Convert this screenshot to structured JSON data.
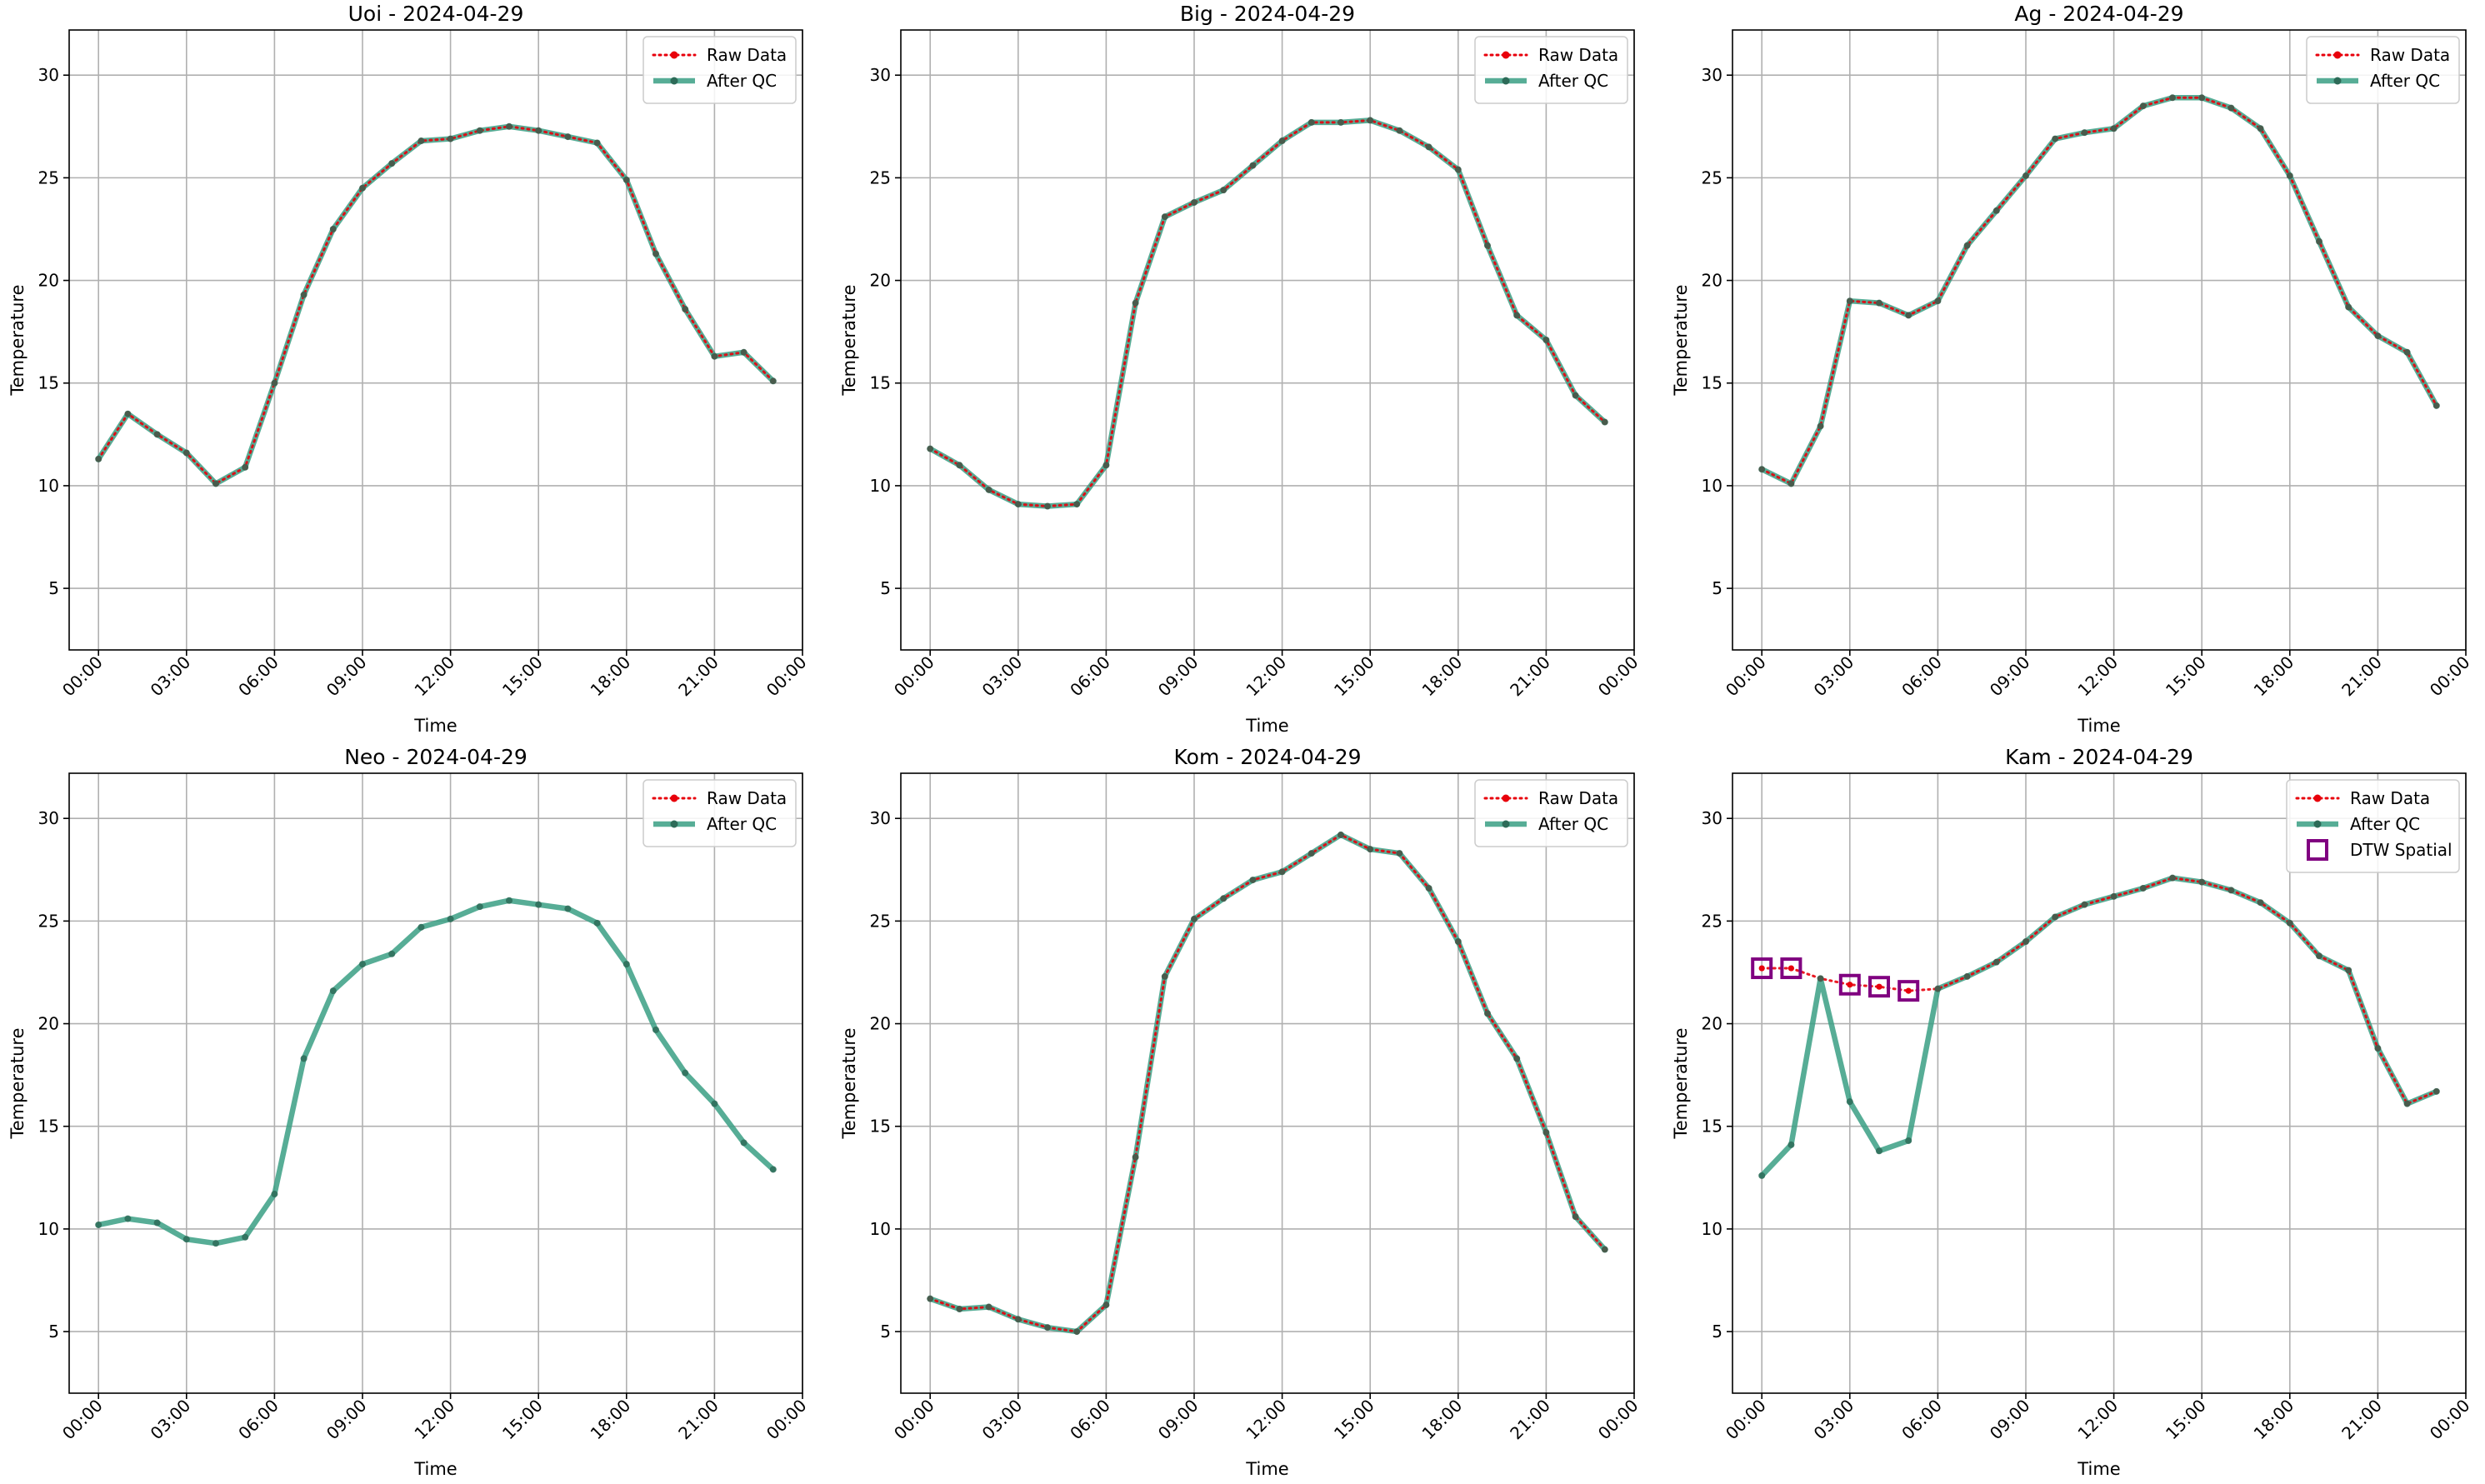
{
  "chart_data": [
    {
      "type": "line",
      "title": "Uoi - 2024-04-29",
      "xlabel": "Time",
      "ylabel": "Temperature",
      "ylim": [
        2,
        32.2
      ],
      "xlim": [
        -1,
        24
      ],
      "x_tick_hours": [
        0,
        3,
        6,
        9,
        12,
        15,
        18,
        21,
        24
      ],
      "x_tick_labels": [
        "00:00",
        "03:00",
        "06:00",
        "09:00",
        "12:00",
        "15:00",
        "18:00",
        "21:00",
        "00:00"
      ],
      "y_ticks": [
        5,
        10,
        15,
        20,
        25,
        30
      ],
      "y_tick_labels": [
        "5",
        "10",
        "15",
        "20",
        "25",
        "30"
      ],
      "grid": true,
      "legend_position": "top-right",
      "legend_entries": [
        "Raw Data",
        "After QC"
      ],
      "x": [
        0,
        1,
        2,
        3,
        4,
        5,
        6,
        7,
        8,
        9,
        10,
        11,
        12,
        13,
        14,
        15,
        16,
        17,
        18,
        19,
        20,
        21,
        22,
        23
      ],
      "series": [
        {
          "name": "Raw Data",
          "style": "dotted-red",
          "values": [
            11.3,
            13.5,
            12.5,
            11.6,
            10.1,
            10.9,
            15.0,
            19.3,
            22.5,
            24.5,
            25.7,
            26.8,
            26.9,
            27.3,
            27.5,
            27.3,
            27.0,
            26.7,
            24.9,
            21.3,
            18.6,
            16.3,
            16.5,
            15.1
          ]
        },
        {
          "name": "After QC",
          "style": "solid-teal",
          "values": [
            11.3,
            13.5,
            12.5,
            11.6,
            10.1,
            10.9,
            15.0,
            19.3,
            22.5,
            24.5,
            25.7,
            26.8,
            26.9,
            27.3,
            27.5,
            27.3,
            27.0,
            26.7,
            24.9,
            21.3,
            18.6,
            16.3,
            16.5,
            15.1
          ]
        }
      ]
    },
    {
      "type": "line",
      "title": "Big - 2024-04-29",
      "xlabel": "Time",
      "ylabel": "Temperature",
      "ylim": [
        2,
        32.2
      ],
      "xlim": [
        -1,
        24
      ],
      "x_tick_hours": [
        0,
        3,
        6,
        9,
        12,
        15,
        18,
        21,
        24
      ],
      "x_tick_labels": [
        "00:00",
        "03:00",
        "06:00",
        "09:00",
        "12:00",
        "15:00",
        "18:00",
        "21:00",
        "00:00"
      ],
      "y_ticks": [
        5,
        10,
        15,
        20,
        25,
        30
      ],
      "y_tick_labels": [
        "5",
        "10",
        "15",
        "20",
        "25",
        "30"
      ],
      "grid": true,
      "legend_position": "top-right",
      "legend_entries": [
        "Raw Data",
        "After QC"
      ],
      "x": [
        0,
        1,
        2,
        3,
        4,
        5,
        6,
        7,
        8,
        9,
        10,
        11,
        12,
        13,
        14,
        15,
        16,
        17,
        18,
        19,
        20,
        21,
        22,
        23
      ],
      "series": [
        {
          "name": "Raw Data",
          "style": "dotted-red",
          "values": [
            11.8,
            11.0,
            9.8,
            9.1,
            9.0,
            9.1,
            11.0,
            18.9,
            23.1,
            23.8,
            24.4,
            25.6,
            26.8,
            27.7,
            27.7,
            27.8,
            27.3,
            26.5,
            25.4,
            21.7,
            18.3,
            17.1,
            14.4,
            13.1
          ]
        },
        {
          "name": "After QC",
          "style": "solid-teal",
          "values": [
            11.8,
            11.0,
            9.8,
            9.1,
            9.0,
            9.1,
            11.0,
            18.9,
            23.1,
            23.8,
            24.4,
            25.6,
            26.8,
            27.7,
            27.7,
            27.8,
            27.3,
            26.5,
            25.4,
            21.7,
            18.3,
            17.1,
            14.4,
            13.1
          ]
        }
      ]
    },
    {
      "type": "line",
      "title": "Ag - 2024-04-29",
      "xlabel": "Time",
      "ylabel": "Temperature",
      "ylim": [
        2,
        32.2
      ],
      "xlim": [
        -1,
        24
      ],
      "x_tick_hours": [
        0,
        3,
        6,
        9,
        12,
        15,
        18,
        21,
        24
      ],
      "x_tick_labels": [
        "00:00",
        "03:00",
        "06:00",
        "09:00",
        "12:00",
        "15:00",
        "18:00",
        "21:00",
        "00:00"
      ],
      "y_ticks": [
        5,
        10,
        15,
        20,
        25,
        30
      ],
      "y_tick_labels": [
        "5",
        "10",
        "15",
        "20",
        "25",
        "30"
      ],
      "grid": true,
      "legend_position": "top-right",
      "legend_entries": [
        "Raw Data",
        "After QC"
      ],
      "x": [
        0,
        1,
        2,
        3,
        4,
        5,
        6,
        7,
        8,
        9,
        10,
        11,
        12,
        13,
        14,
        15,
        16,
        17,
        18,
        19,
        20,
        21,
        22,
        23
      ],
      "series": [
        {
          "name": "Raw Data",
          "style": "dotted-red",
          "values": [
            10.8,
            10.1,
            12.9,
            19.0,
            18.9,
            18.3,
            19.0,
            21.7,
            23.4,
            25.1,
            26.9,
            27.2,
            27.4,
            28.5,
            28.9,
            28.9,
            28.4,
            27.4,
            25.1,
            21.9,
            18.7,
            17.3,
            16.5,
            13.9
          ]
        },
        {
          "name": "After QC",
          "style": "solid-teal",
          "values": [
            10.8,
            10.1,
            12.9,
            19.0,
            18.9,
            18.3,
            19.0,
            21.7,
            23.4,
            25.1,
            26.9,
            27.2,
            27.4,
            28.5,
            28.9,
            28.9,
            28.4,
            27.4,
            25.1,
            21.9,
            18.7,
            17.3,
            16.5,
            13.9
          ]
        }
      ]
    },
    {
      "type": "line",
      "title": "Neo - 2024-04-29",
      "xlabel": "Time",
      "ylabel": "Temperature",
      "ylim": [
        2,
        32.2
      ],
      "xlim": [
        -1,
        24
      ],
      "x_tick_hours": [
        0,
        3,
        6,
        9,
        12,
        15,
        18,
        21,
        24
      ],
      "x_tick_labels": [
        "00:00",
        "03:00",
        "06:00",
        "09:00",
        "12:00",
        "15:00",
        "18:00",
        "21:00",
        "00:00"
      ],
      "y_ticks": [
        5,
        10,
        15,
        20,
        25,
        30
      ],
      "y_tick_labels": [
        "5",
        "10",
        "15",
        "20",
        "25",
        "30"
      ],
      "grid": true,
      "legend_position": "top-right",
      "legend_entries": [
        "Raw Data",
        "After QC"
      ],
      "x": [
        0,
        1,
        2,
        3,
        4,
        5,
        6,
        7,
        8,
        9,
        10,
        11,
        12,
        13,
        14,
        15,
        16,
        17,
        18,
        19,
        20,
        21,
        22,
        23
      ],
      "series": [
        {
          "name": "After QC",
          "style": "solid-teal",
          "values": [
            10.2,
            10.5,
            10.3,
            9.5,
            9.3,
            9.6,
            11.7,
            18.3,
            21.6,
            22.9,
            23.4,
            24.7,
            25.1,
            25.7,
            26.0,
            25.8,
            25.6,
            24.9,
            22.9,
            19.7,
            17.6,
            16.1,
            14.2,
            12.9
          ]
        }
      ]
    },
    {
      "type": "line",
      "title": "Kom - 2024-04-29",
      "xlabel": "Time",
      "ylabel": "Temperature",
      "ylim": [
        2,
        32.2
      ],
      "xlim": [
        -1,
        24
      ],
      "x_tick_hours": [
        0,
        3,
        6,
        9,
        12,
        15,
        18,
        21,
        24
      ],
      "x_tick_labels": [
        "00:00",
        "03:00",
        "06:00",
        "09:00",
        "12:00",
        "15:00",
        "18:00",
        "21:00",
        "00:00"
      ],
      "y_ticks": [
        5,
        10,
        15,
        20,
        25,
        30
      ],
      "y_tick_labels": [
        "5",
        "10",
        "15",
        "20",
        "25",
        "30"
      ],
      "grid": true,
      "legend_position": "top-right",
      "legend_entries": [
        "Raw Data",
        "After QC"
      ],
      "x": [
        0,
        1,
        2,
        3,
        4,
        5,
        6,
        7,
        8,
        9,
        10,
        11,
        12,
        13,
        14,
        15,
        16,
        17,
        18,
        19,
        20,
        21,
        22,
        23
      ],
      "series": [
        {
          "name": "Raw Data",
          "style": "dotted-red",
          "values": [
            6.6,
            6.1,
            6.2,
            5.6,
            5.2,
            5.0,
            6.3,
            13.5,
            22.3,
            25.1,
            26.1,
            27.0,
            27.4,
            28.3,
            29.2,
            28.5,
            28.3,
            26.6,
            24.0,
            20.5,
            18.3,
            14.7,
            10.6,
            9.0
          ]
        },
        {
          "name": "After QC",
          "style": "solid-teal",
          "values": [
            6.6,
            6.1,
            6.2,
            5.6,
            5.2,
            5.0,
            6.3,
            13.5,
            22.3,
            25.1,
            26.1,
            27.0,
            27.4,
            28.3,
            29.2,
            28.5,
            28.3,
            26.6,
            24.0,
            20.5,
            18.3,
            14.7,
            10.6,
            9.0
          ]
        }
      ]
    },
    {
      "type": "line",
      "title": "Kam - 2024-04-29",
      "xlabel": "Time",
      "ylabel": "Temperature",
      "ylim": [
        2,
        32.2
      ],
      "xlim": [
        -1,
        24
      ],
      "x_tick_hours": [
        0,
        3,
        6,
        9,
        12,
        15,
        18,
        21,
        24
      ],
      "x_tick_labels": [
        "00:00",
        "03:00",
        "06:00",
        "09:00",
        "12:00",
        "15:00",
        "18:00",
        "21:00",
        "00:00"
      ],
      "y_ticks": [
        5,
        10,
        15,
        20,
        25,
        30
      ],
      "y_tick_labels": [
        "5",
        "10",
        "15",
        "20",
        "25",
        "30"
      ],
      "grid": true,
      "legend_position": "top-right",
      "legend_entries": [
        "Raw Data",
        "After QC",
        "DTW Spatial"
      ],
      "x": [
        0,
        1,
        2,
        3,
        4,
        5,
        6,
        7,
        8,
        9,
        10,
        11,
        12,
        13,
        14,
        15,
        16,
        17,
        18,
        19,
        20,
        21,
        22,
        23
      ],
      "series": [
        {
          "name": "Raw Data",
          "style": "dotted-red",
          "values": [
            22.7,
            22.7,
            22.2,
            21.9,
            21.8,
            21.6,
            21.7,
            22.3,
            23.0,
            24.0,
            25.2,
            25.8,
            26.2,
            26.6,
            27.1,
            26.9,
            26.5,
            25.9,
            24.9,
            23.3,
            22.6,
            18.8,
            16.1,
            16.7
          ]
        },
        {
          "name": "After QC",
          "style": "solid-teal",
          "values": [
            12.6,
            14.1,
            22.2,
            16.2,
            13.8,
            14.3,
            21.7,
            22.3,
            23.0,
            24.0,
            25.2,
            25.8,
            26.2,
            26.6,
            27.1,
            26.9,
            26.5,
            25.9,
            24.9,
            23.3,
            22.6,
            18.8,
            16.1,
            16.7
          ]
        }
      ],
      "flagged": {
        "name": "DTW Spatial",
        "x": [
          0,
          1,
          3,
          4,
          5
        ],
        "values": [
          22.7,
          22.7,
          21.9,
          21.8,
          21.6
        ]
      }
    }
  ],
  "colors": {
    "raw": "#e8000b",
    "qc_line": "#3a9f84",
    "qc_marker": "#2d6b58",
    "flag": "#800080",
    "grid": "#b0b0b0"
  }
}
